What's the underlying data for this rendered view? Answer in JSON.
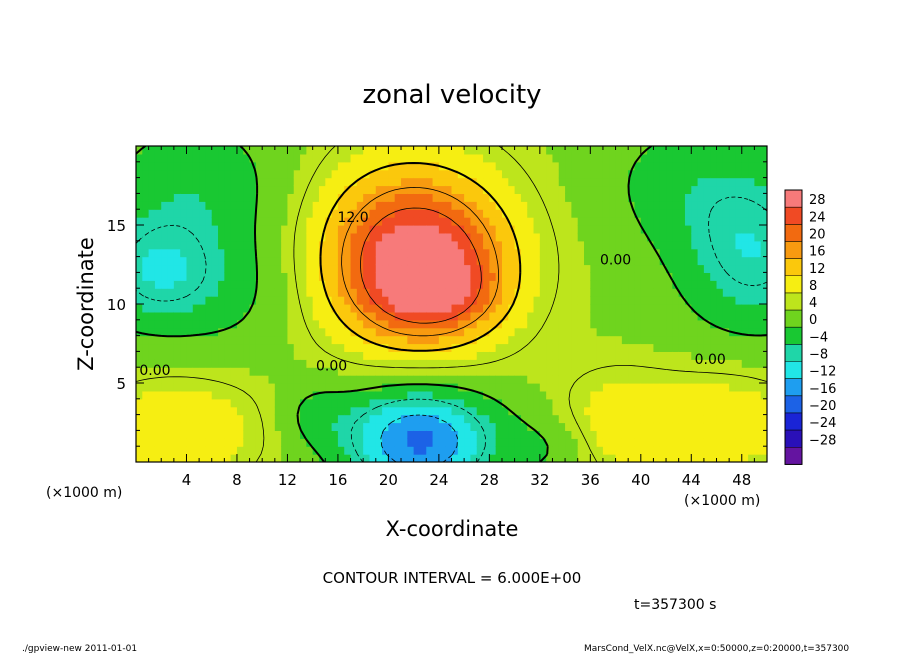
{
  "chart_data": {
    "type": "heatmap",
    "title": "zonal velocity",
    "xlabel": "X-coordinate",
    "ylabel": "Z-coordinate",
    "x_unit_label": "(×1000 m)",
    "y_unit_label": "(×1000 m)",
    "xlim": [
      0,
      50
    ],
    "ylim": [
      0,
      20
    ],
    "x_ticks": [
      4,
      8,
      12,
      16,
      20,
      24,
      28,
      32,
      36,
      40,
      44,
      48
    ],
    "y_ticks": [
      5,
      10,
      15
    ],
    "colorbar": {
      "labels": [
        28,
        24,
        20,
        16,
        12,
        8,
        4,
        0,
        -4,
        -8,
        -12,
        -16,
        -20,
        -24,
        -28
      ],
      "label_text": [
        "28",
        "24",
        "20",
        "16",
        "12",
        "8",
        "4",
        "0",
        "−4",
        "−8",
        "−12",
        "−16",
        "−20",
        "−24",
        "−28"
      ],
      "colors": [
        "#f77a7a",
        "#f04a24",
        "#f26a10",
        "#f89a10",
        "#fbc80c",
        "#f6ee12",
        "#bde51c",
        "#6fd41e",
        "#19c832",
        "#1fd6a8",
        "#21e6e6",
        "#1e9ef0",
        "#1c62e6",
        "#1a24d6",
        "#2a10b8",
        "#6414a0"
      ]
    },
    "contour_interval": 6.0,
    "contour_labels": [
      {
        "text": "12.0",
        "x": 17.2,
        "z": 15.2
      },
      {
        "text": "0.00",
        "x": 15.5,
        "z": 5.8
      },
      {
        "text": "0.00",
        "x": 1.5,
        "z": 5.5
      },
      {
        "text": "0.00",
        "x": 38.0,
        "z": 12.5
      },
      {
        "text": "0.00",
        "x": 45.5,
        "z": 6.2
      }
    ],
    "features": [
      {
        "x": 22.5,
        "z": 12.0,
        "value": 21,
        "sx": 4.5,
        "sz": 3.0
      },
      {
        "x": 24.0,
        "z": 10.5,
        "value": 6,
        "sx": 3.0,
        "sz": 1.5
      },
      {
        "x": 22.0,
        "z": 13.5,
        "value": 10,
        "sx": 6.5,
        "sz": 5.0
      },
      {
        "x": 21.5,
        "z": 16.0,
        "value": 4,
        "sx": 4.5,
        "sz": 2.5
      },
      {
        "x": 22.5,
        "z": 1.0,
        "value": -17,
        "sx": 4.0,
        "sz": 2.2
      },
      {
        "x": 22.0,
        "z": 3.0,
        "value": -5,
        "sx": 5.0,
        "sz": 2.0
      },
      {
        "x": 1.5,
        "z": 12.0,
        "value": -10,
        "sx": 3.5,
        "sz": 2.5
      },
      {
        "x": 49.0,
        "z": 13.0,
        "value": -10,
        "sx": 4.0,
        "sz": 3.5
      },
      {
        "x": 5.0,
        "z": 17.5,
        "value": -6,
        "sx": 5.0,
        "sz": 3.0
      },
      {
        "x": 44.0,
        "z": 17.5,
        "value": -5,
        "sx": 5.0,
        "sz": 3.0
      },
      {
        "x": 8.0,
        "z": 11.0,
        "value": -4,
        "sx": 4.0,
        "sz": 3.0
      },
      {
        "x": 3.5,
        "z": 2.0,
        "value": 9,
        "sx": 5.0,
        "sz": 2.5
      },
      {
        "x": 47.0,
        "z": 2.5,
        "value": 8,
        "sx": 4.5,
        "sz": 2.5
      },
      {
        "x": 14.0,
        "z": 3.0,
        "value": -4,
        "sx": 2.0,
        "sz": 1.5
      },
      {
        "x": 33.0,
        "z": 1.0,
        "value": -4,
        "sx": 2.5,
        "sz": 1.5
      },
      {
        "x": 38.0,
        "z": 2.5,
        "value": 7,
        "sx": 3.5,
        "sz": 2.5
      }
    ],
    "background_value": 3,
    "grid": false
  },
  "annotations": {
    "contour_interval_text": "CONTOUR INTERVAL = 6.000E+00",
    "time_text": "t=357300 s",
    "footer_left": "./gpview-new   2011-01-01",
    "footer_right": "MarsCond_VelX.nc@VelX,x=0:50000,z=0:20000,t=357300"
  }
}
